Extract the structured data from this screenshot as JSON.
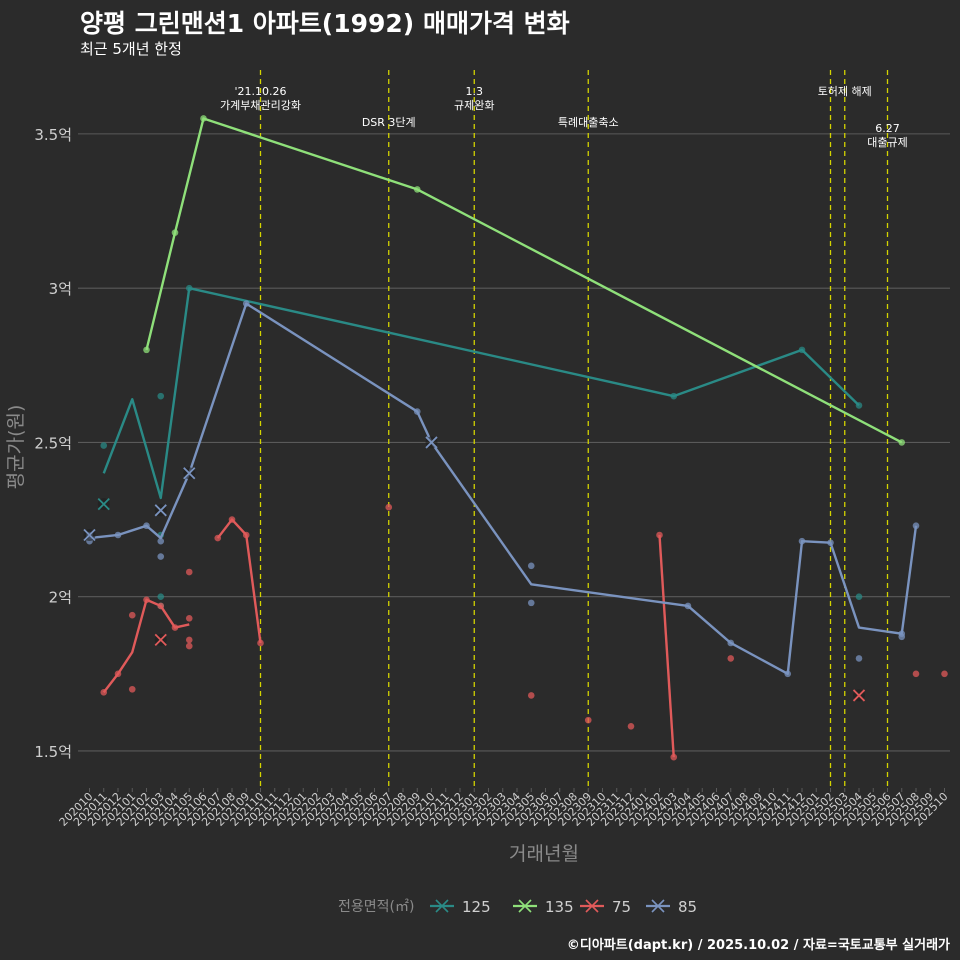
{
  "title": "양평 그린맨션1 아파트(1992) 매매가격 변화",
  "subtitle": "최근 5개년 한정",
  "caption": "©디아파트(dapt.kr) / 2025.10.02 / 자료=국토교통부 실거래가",
  "colors": {
    "background": "#2b2b2b",
    "grid": "#5a5a5a",
    "event_line": "#d4d400",
    "axis_text": "#cfcfcf",
    "axis_title": "#8a8a8a"
  },
  "chart_data": {
    "type": "line",
    "xlabel": "거래년월",
    "ylabel": "평균가(원)",
    "ylim": [
      1.38,
      3.72
    ],
    "yticks": [
      {
        "value": 1.5,
        "label": "1.5억"
      },
      {
        "value": 2.0,
        "label": "2억"
      },
      {
        "value": 2.5,
        "label": "2.5억"
      },
      {
        "value": 3.0,
        "label": "3억"
      },
      {
        "value": 3.5,
        "label": "3.5억"
      }
    ],
    "categories": [
      "202010",
      "202011",
      "202012",
      "202101",
      "202102",
      "202103",
      "202104",
      "202105",
      "202106",
      "202107",
      "202108",
      "202109",
      "202110",
      "202111",
      "202112",
      "202201",
      "202202",
      "202203",
      "202204",
      "202205",
      "202206",
      "202207",
      "202208",
      "202209",
      "202210",
      "202211",
      "202212",
      "202301",
      "202302",
      "202303",
      "202304",
      "202305",
      "202306",
      "202307",
      "202308",
      "202309",
      "202310",
      "202311",
      "202312",
      "202401",
      "202402",
      "202403",
      "202404",
      "202405",
      "202406",
      "202407",
      "202408",
      "202409",
      "202410",
      "202411",
      "202412",
      "202501",
      "202502",
      "202503",
      "202504",
      "202505",
      "202506",
      "202507",
      "202508",
      "202509",
      "202510"
    ],
    "legend": {
      "title": "전용면적(㎡)",
      "position": "bottom"
    },
    "events": [
      {
        "x": 12.0,
        "label_lines": [
          "'21.10.26",
          "가계부채관리강화"
        ],
        "label_row": 0
      },
      {
        "x": 21.0,
        "label_lines": [
          "DSR 3단계"
        ],
        "label_row": 1
      },
      {
        "x": 27.0,
        "label_lines": [
          "1.3",
          "규제완화"
        ],
        "label_row": 0
      },
      {
        "x": 35.0,
        "label_lines": [
          "특례대출축소"
        ],
        "label_row": 1
      },
      {
        "x": 52.0,
        "label_lines": [],
        "label_row": 0
      },
      {
        "x": 53.0,
        "label_lines": [
          "토허제 해제"
        ],
        "label_row": 0
      },
      {
        "x": 56.0,
        "label_lines": [
          "6.27",
          "대출규제"
        ],
        "label_row": 2
      }
    ],
    "series": [
      {
        "name": "125",
        "color": "#2a8a86",
        "line": [
          [
            1,
            2.4
          ],
          [
            3,
            2.64
          ],
          [
            5,
            2.32
          ],
          [
            7,
            3.0
          ],
          [
            41,
            2.65
          ],
          [
            50,
            2.8
          ],
          [
            54,
            2.62
          ]
        ],
        "points": [
          [
            1,
            2.49
          ],
          [
            5,
            2.65
          ],
          [
            5,
            2.0
          ],
          [
            5,
            1.97
          ],
          [
            5,
            2.2
          ],
          [
            7,
            3.0
          ],
          [
            41,
            2.65
          ],
          [
            50,
            2.8
          ],
          [
            54,
            2.62
          ],
          [
            54,
            2.0
          ]
        ],
        "crosses": [
          [
            1,
            2.3
          ]
        ]
      },
      {
        "name": "135",
        "color": "#8fe07a",
        "line": [
          [
            4,
            2.8
          ],
          [
            6,
            3.18
          ],
          [
            8,
            3.55
          ],
          [
            23,
            3.32
          ],
          [
            57,
            2.5
          ]
        ],
        "points": [
          [
            4,
            2.8
          ],
          [
            6,
            3.18
          ],
          [
            8,
            3.55
          ],
          [
            23,
            3.32
          ],
          [
            57,
            2.5
          ]
        ],
        "crosses": []
      },
      {
        "name": "75",
        "color": "#e05a5a",
        "line_segments": [
          [
            [
              1,
              1.69
            ],
            [
              2,
              1.75
            ],
            [
              3,
              1.82
            ],
            [
              4,
              1.99
            ],
            [
              5,
              1.97
            ],
            [
              6,
              1.9
            ],
            [
              7,
              1.91
            ]
          ],
          [
            [
              9,
              2.19
            ],
            [
              10,
              2.25
            ],
            [
              11,
              2.2
            ],
            [
              12,
              1.85
            ]
          ],
          [
            [
              40,
              2.2
            ],
            [
              41,
              1.48
            ]
          ]
        ],
        "points": [
          [
            1,
            1.69
          ],
          [
            2,
            1.75
          ],
          [
            3,
            1.94
          ],
          [
            3,
            1.7
          ],
          [
            4,
            1.99
          ],
          [
            5,
            1.97
          ],
          [
            6,
            1.9
          ],
          [
            7,
            2.08
          ],
          [
            7,
            1.93
          ],
          [
            7,
            1.86
          ],
          [
            7,
            1.84
          ],
          [
            9,
            2.19
          ],
          [
            10,
            2.25
          ],
          [
            11,
            2.2
          ],
          [
            12,
            1.85
          ],
          [
            21,
            2.29
          ],
          [
            31,
            1.68
          ],
          [
            35,
            1.6
          ],
          [
            38,
            1.58
          ],
          [
            40,
            2.2
          ],
          [
            41,
            1.48
          ],
          [
            45,
            1.8
          ],
          [
            58,
            1.75
          ],
          [
            60,
            1.75
          ]
        ],
        "crosses": [
          [
            5,
            1.86
          ],
          [
            54,
            1.68
          ]
        ]
      },
      {
        "name": "85",
        "color": "#7a93bf",
        "line": [
          [
            0,
            2.19
          ],
          [
            2,
            2.2
          ],
          [
            4,
            2.23
          ],
          [
            5,
            2.19
          ],
          [
            7,
            2.4
          ],
          [
            11,
            2.95
          ],
          [
            23,
            2.6
          ],
          [
            24,
            2.5
          ],
          [
            31,
            2.04
          ],
          [
            42,
            1.97
          ],
          [
            45,
            1.85
          ],
          [
            49,
            1.75
          ],
          [
            50,
            2.18
          ],
          [
            52,
            2.175
          ],
          [
            54,
            1.9
          ],
          [
            57,
            1.88
          ],
          [
            58,
            2.23
          ]
        ],
        "points": [
          [
            0,
            2.18
          ],
          [
            0,
            2.2
          ],
          [
            2,
            2.2
          ],
          [
            4,
            2.23
          ],
          [
            5,
            2.18
          ],
          [
            5,
            2.13
          ],
          [
            11,
            2.95
          ],
          [
            23,
            2.6
          ],
          [
            31,
            2.1
          ],
          [
            31,
            1.98
          ],
          [
            42,
            1.97
          ],
          [
            45,
            1.85
          ],
          [
            49,
            1.75
          ],
          [
            50,
            2.18
          ],
          [
            52,
            2.175
          ],
          [
            54,
            1.8
          ],
          [
            57,
            1.87
          ],
          [
            57,
            1.88
          ],
          [
            58,
            2.23
          ]
        ],
        "crosses": [
          [
            0,
            2.2
          ],
          [
            5,
            2.28
          ],
          [
            7,
            2.4
          ],
          [
            24,
            2.5
          ]
        ]
      }
    ]
  }
}
